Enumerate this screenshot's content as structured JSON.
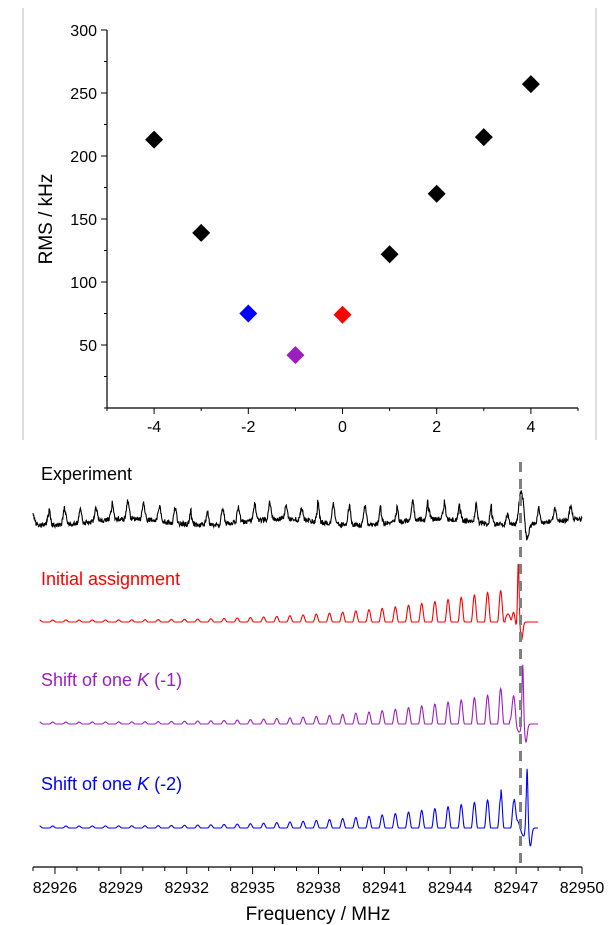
{
  "chart_data": [
    {
      "type": "scatter",
      "title": "",
      "xlabel": "",
      "ylabel": "RMS / kHz",
      "xlim": [
        -5,
        5
      ],
      "ylim": [
        0,
        300
      ],
      "x_ticks": [
        -4,
        -2,
        0,
        2,
        4
      ],
      "y_ticks": [
        50,
        100,
        150,
        200,
        250,
        300
      ],
      "marker": "diamond",
      "points": [
        {
          "x": -4,
          "y": 213,
          "color": "#000000"
        },
        {
          "x": -3,
          "y": 139,
          "color": "#000000"
        },
        {
          "x": -2,
          "y": 75,
          "color": "#0000ff"
        },
        {
          "x": -1,
          "y": 42,
          "color": "#9b1fc0"
        },
        {
          "x": 0,
          "y": 74,
          "color": "#ff0000"
        },
        {
          "x": 1,
          "y": 122,
          "color": "#000000"
        },
        {
          "x": 2,
          "y": 170,
          "color": "#000000"
        },
        {
          "x": 3,
          "y": 215,
          "color": "#000000"
        },
        {
          "x": 4,
          "y": 257,
          "color": "#000000"
        }
      ]
    },
    {
      "type": "line",
      "title": "",
      "xlabel": "Frequency / MHz",
      "ylabel": "",
      "xlim": [
        82925,
        82950
      ],
      "x_ticks": [
        82926,
        82929,
        82932,
        82935,
        82938,
        82941,
        82944,
        82947,
        82950
      ],
      "reference_line_x": 82947.2,
      "series": [
        {
          "name": "Experiment",
          "color": "#000000",
          "pattern": "experiment",
          "range": [
            82925,
            82950
          ]
        },
        {
          "name": "Initial assignment",
          "color": "#ff0000",
          "pattern": "simulated",
          "edge": 82947.1,
          "range": [
            82925.3,
            82948
          ]
        },
        {
          "name": "Shift of one K (-1)",
          "color": "#9b1fc0",
          "pattern": "simulated",
          "edge": 82947.3,
          "range": [
            82925.3,
            82948
          ]
        },
        {
          "name": "Shift of one K (-2)",
          "color": "#0000ff",
          "pattern": "simulated",
          "edge": 82947.5,
          "range": [
            82925.3,
            82948
          ]
        }
      ]
    }
  ],
  "labels": {
    "experiment": "Experiment",
    "initial": "Initial assignment",
    "shift1_prefix": "Shift of one ",
    "shift1_k": "K",
    "shift1_suffix": " (-1)",
    "shift2_prefix": "Shift of one ",
    "shift2_k": "K",
    "shift2_suffix": " (-2)"
  },
  "colors": {
    "black": "#000000",
    "red": "#ff0000",
    "purple": "#9b1fc0",
    "blue": "#0000ff",
    "dash": "#808080"
  }
}
